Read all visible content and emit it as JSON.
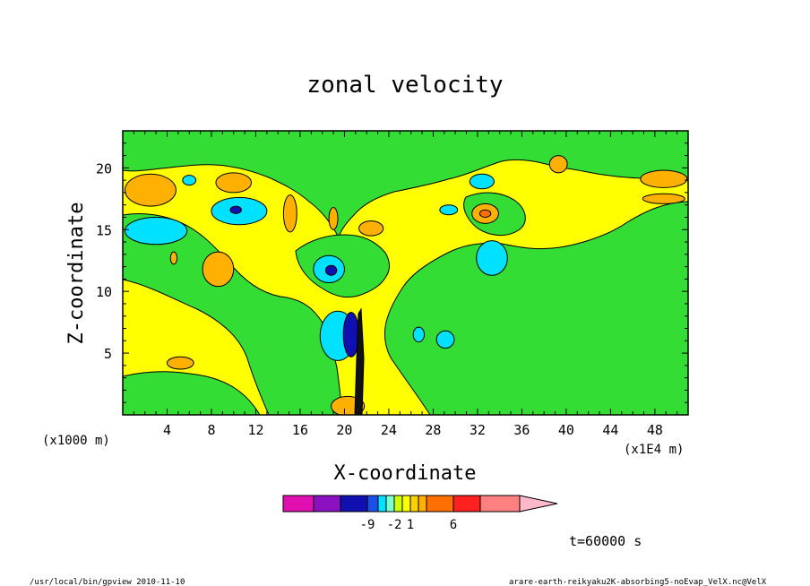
{
  "chart_data": {
    "type": "heatmap",
    "title": "zonal velocity",
    "xlabel": "X-coordinate",
    "ylabel": "Z-coordinate",
    "x_unit_left": "(x1000 m)",
    "x_unit_right": "(x1E4 m)",
    "xlim": [
      0,
      51
    ],
    "ylim": [
      0,
      23
    ],
    "x_ticks": [
      4,
      8,
      12,
      16,
      20,
      24,
      28,
      32,
      36,
      40,
      44,
      48
    ],
    "y_ticks": [
      5,
      10,
      15,
      20
    ],
    "colorbar": {
      "colors": [
        "#e010b0",
        "#8a10c0",
        "#1010b0",
        "#1a50e8",
        "#00e0ff",
        "#80ffd0",
        "#ccff00",
        "#ffff00",
        "#ffd000",
        "#ffb000",
        "#ff7000",
        "#ff2020",
        "#ff8080",
        "#ffb8c8"
      ],
      "tick_labels": [
        {
          "label": "-9",
          "bin_index": 2
        },
        {
          "label": "-2",
          "bin_index": 5
        },
        {
          "label": "1",
          "bin_index": 7
        },
        {
          "label": "6",
          "bin_index": 10
        }
      ]
    },
    "blobs": [
      {
        "color": "#00e0ff",
        "cx": 3,
        "cy": 14.9,
        "rx": 2.8,
        "ry": 1.1
      },
      {
        "color": "#00e0ff",
        "cx": 10.5,
        "cy": 16.5,
        "rx": 2.5,
        "ry": 1.1
      },
      {
        "color": "#1010b0",
        "cx": 10.2,
        "cy": 16.6,
        "rx": 0.5,
        "ry": 0.3
      },
      {
        "color": "#00e0ff",
        "cx": 6,
        "cy": 19,
        "rx": 0.6,
        "ry": 0.4
      },
      {
        "color": "#ffb000",
        "cx": 2.5,
        "cy": 18.2,
        "rx": 2.3,
        "ry": 1.3
      },
      {
        "color": "#ffb000",
        "cx": 10,
        "cy": 18.8,
        "rx": 1.6,
        "ry": 0.8
      },
      {
        "color": "#ffb000",
        "cx": 8.6,
        "cy": 11.8,
        "rx": 1.4,
        "ry": 1.4
      },
      {
        "color": "#ffb000",
        "cx": 5.2,
        "cy": 4.2,
        "rx": 1.2,
        "ry": 0.5
      },
      {
        "color": "#00e0ff",
        "cx": 18.6,
        "cy": 11.8,
        "rx": 1.4,
        "ry": 1.1
      },
      {
        "color": "#1010b0",
        "cx": 18.8,
        "cy": 11.7,
        "rx": 0.5,
        "ry": 0.4
      },
      {
        "color": "#ffb000",
        "cx": 15.1,
        "cy": 16.3,
        "rx": 0.6,
        "ry": 1.5
      },
      {
        "color": "#ffb000",
        "cx": 22.4,
        "cy": 15.1,
        "rx": 1.1,
        "ry": 0.6
      },
      {
        "color": "#ffb000",
        "cx": 19,
        "cy": 15.9,
        "rx": 0.4,
        "ry": 0.9
      },
      {
        "color": "#00e0ff",
        "cx": 33.3,
        "cy": 12.7,
        "rx": 1.4,
        "ry": 1.4
      },
      {
        "color": "#00e0ff",
        "cx": 32.4,
        "cy": 18.9,
        "rx": 1.1,
        "ry": 0.6
      },
      {
        "color": "#00e0ff",
        "cx": 29.4,
        "cy": 16.6,
        "rx": 0.8,
        "ry": 0.4
      },
      {
        "color": "#ffb000",
        "cx": 32.7,
        "cy": 16.3,
        "rx": 1.2,
        "ry": 0.8
      },
      {
        "color": "#ff7000",
        "cx": 32.7,
        "cy": 16.3,
        "rx": 0.5,
        "ry": 0.3
      },
      {
        "color": "#ffb000",
        "cx": 48.8,
        "cy": 19.1,
        "rx": 2.1,
        "ry": 0.7
      },
      {
        "color": "#ffb000",
        "cx": 48.8,
        "cy": 17.5,
        "rx": 1.9,
        "ry": 0.4
      },
      {
        "color": "#ffb000",
        "cx": 39.3,
        "cy": 20.3,
        "rx": 0.8,
        "ry": 0.7
      },
      {
        "color": "#00e0ff",
        "cx": 19.4,
        "cy": 6.4,
        "rx": 1.6,
        "ry": 2.0
      },
      {
        "color": "#1010b0",
        "cx": 20.6,
        "cy": 6.5,
        "rx": 0.7,
        "ry": 1.8
      },
      {
        "color": "#00e0ff",
        "cx": 26.7,
        "cy": 6.5,
        "rx": 0.5,
        "ry": 0.6
      },
      {
        "color": "#00e0ff",
        "cx": 29.1,
        "cy": 6.1,
        "rx": 0.8,
        "ry": 0.7
      },
      {
        "color": "#ffb000",
        "cx": 20.3,
        "cy": 0.7,
        "rx": 1.5,
        "ry": 0.8
      },
      {
        "color": "#ffb000",
        "cx": 4.6,
        "cy": 12.7,
        "rx": 0.3,
        "ry": 0.5
      }
    ]
  },
  "footer": {
    "time_label": "t=60000 s",
    "left_note": "/usr/local/bin/gpview  2010-11-10",
    "right_note": "arare-earth-reikyaku2K-absorbing5-noEvap_VelX.nc@VelX"
  }
}
